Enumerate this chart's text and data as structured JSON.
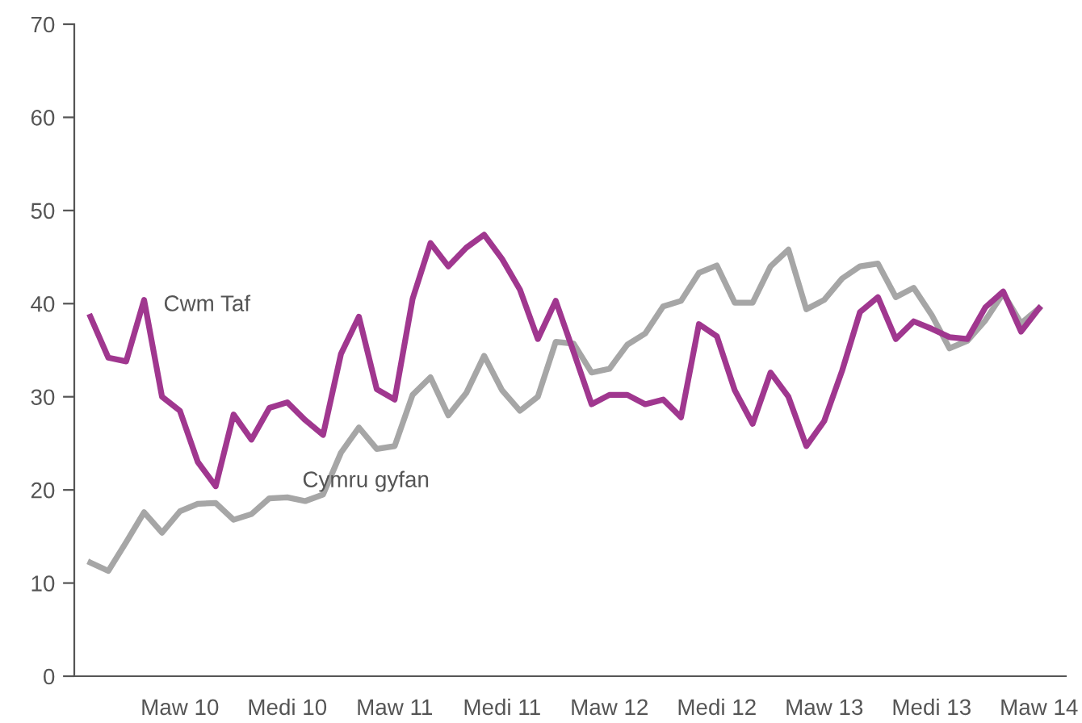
{
  "chart_data": {
    "type": "line",
    "categories": [
      null,
      null,
      null,
      null,
      null,
      "Maw 10",
      null,
      null,
      null,
      null,
      null,
      "Medi 10",
      null,
      null,
      null,
      null,
      null,
      "Maw 11",
      null,
      null,
      null,
      null,
      null,
      "Medi 11",
      null,
      null,
      null,
      null,
      null,
      "Maw 12",
      null,
      null,
      null,
      null,
      null,
      "Medi 12",
      null,
      null,
      null,
      null,
      null,
      "Maw 13",
      null,
      null,
      null,
      null,
      null,
      "Medi 13",
      null,
      null,
      null,
      null,
      null,
      "Maw 14"
    ],
    "series": [
      {
        "name": "Cymru gyfan",
        "color": "#a6a6a6",
        "values": [
          12.2,
          11.3,
          14.4,
          17.6,
          15.4,
          17.7,
          18.5,
          18.6,
          16.8,
          17.4,
          19.1,
          19.2,
          18.8,
          19.5,
          24.0,
          26.7,
          24.4,
          24.7,
          30.2,
          32.1,
          28.0,
          30.4,
          34.4,
          30.7,
          28.5,
          30.0,
          35.9,
          35.7,
          32.6,
          33.0,
          35.6,
          36.8,
          39.7,
          40.3,
          43.3,
          44.1,
          40.1,
          40.1,
          44.0,
          45.8,
          39.4,
          40.4,
          42.7,
          44.0,
          44.3,
          40.7,
          41.7,
          38.8,
          35.2,
          36.0,
          38.2,
          41.1,
          37.9,
          39.5
        ]
      },
      {
        "name": "Cwm Taf",
        "color": "#a0378f",
        "values": [
          38.6,
          34.2,
          33.8,
          40.4,
          30.0,
          28.5,
          23.0,
          20.4,
          28.1,
          25.4,
          28.8,
          29.4,
          27.5,
          25.9,
          34.6,
          38.6,
          30.8,
          29.7,
          40.5,
          46.5,
          44.0,
          46.0,
          47.4,
          44.8,
          41.5,
          36.2,
          40.3,
          34.8,
          29.2,
          30.2,
          30.2,
          29.2,
          29.7,
          27.8,
          37.8,
          36.5,
          30.7,
          27.1,
          32.6,
          30.0,
          24.7,
          27.4,
          32.8,
          39.1,
          40.7,
          36.2,
          38.1,
          37.3,
          36.4,
          36.2,
          39.6,
          41.3,
          37.0,
          39.5
        ]
      }
    ],
    "ylim": [
      0,
      70
    ],
    "yticks": [
      0,
      10,
      20,
      30,
      40,
      50,
      60,
      70
    ],
    "grid": false,
    "legend": false,
    "marker": "none",
    "line_style": "solid"
  }
}
